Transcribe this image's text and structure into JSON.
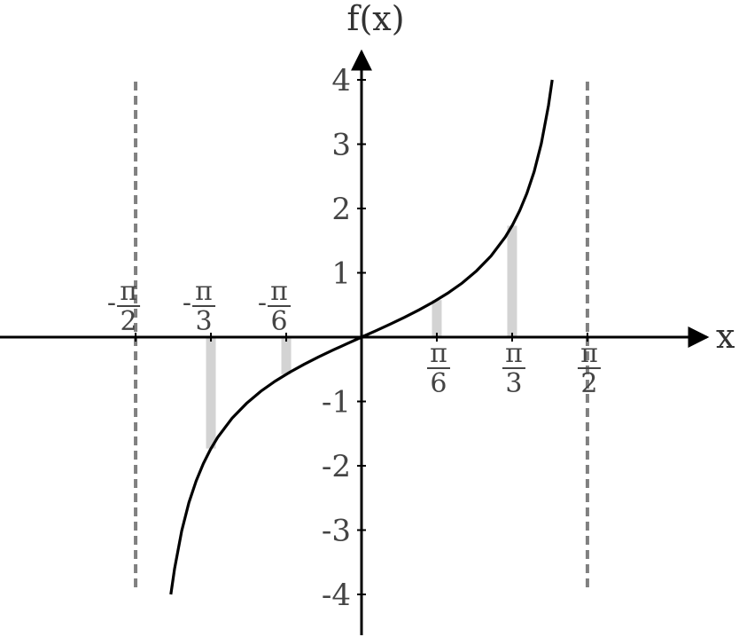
{
  "chart_data": {
    "type": "line",
    "function": "tan(x)",
    "xlabel": "x",
    "ylabel": "f(x)",
    "xlim": [
      -2.5,
      2.2
    ],
    "ylim": [
      -4.5,
      4.1
    ],
    "y_ticks": [
      {
        "value": -4,
        "label": "-4"
      },
      {
        "value": -3,
        "label": "-3"
      },
      {
        "value": -2,
        "label": "-2"
      },
      {
        "value": -1,
        "label": "-1"
      },
      {
        "value": 1,
        "label": "1"
      },
      {
        "value": 2,
        "label": "2"
      },
      {
        "value": 3,
        "label": "3"
      },
      {
        "value": 4,
        "label": "4"
      }
    ],
    "x_ticks": [
      {
        "value": -1.5708,
        "sign": "-",
        "numerator": "π",
        "denominator": "2",
        "position": "above"
      },
      {
        "value": -1.0472,
        "sign": "-",
        "numerator": "π",
        "denominator": "3",
        "position": "above"
      },
      {
        "value": -0.5236,
        "sign": "-",
        "numerator": "π",
        "denominator": "6",
        "position": "above"
      },
      {
        "value": 0.5236,
        "sign": "",
        "numerator": "π",
        "denominator": "6",
        "position": "below"
      },
      {
        "value": 1.0472,
        "sign": "",
        "numerator": "π",
        "denominator": "3",
        "position": "below"
      },
      {
        "value": 1.5708,
        "sign": "",
        "numerator": "π",
        "denominator": "2",
        "position": "below"
      }
    ],
    "asymptotes_x": [
      -1.5708,
      1.5708
    ],
    "highlight_points": [
      {
        "x": -1.0472,
        "y": -1.732
      },
      {
        "x": -0.5236,
        "y": -0.577
      },
      {
        "x": 0.5236,
        "y": 0.577
      },
      {
        "x": 1.0472,
        "y": 1.732
      }
    ],
    "curve_points": [
      {
        "x": -1.3258,
        "y": -4.0
      },
      {
        "x": -1.3,
        "y": -3.602
      },
      {
        "x": -1.25,
        "y": -3.01
      },
      {
        "x": -1.2,
        "y": -2.572
      },
      {
        "x": -1.15,
        "y": -2.234
      },
      {
        "x": -1.1,
        "y": -1.965
      },
      {
        "x": -1.05,
        "y": -1.743
      },
      {
        "x": -1.0,
        "y": -1.557
      },
      {
        "x": -0.9,
        "y": -1.26
      },
      {
        "x": -0.8,
        "y": -1.03
      },
      {
        "x": -0.7,
        "y": -0.842
      },
      {
        "x": -0.6,
        "y": -0.684
      },
      {
        "x": -0.5,
        "y": -0.546
      },
      {
        "x": -0.4,
        "y": -0.423
      },
      {
        "x": -0.3,
        "y": -0.309
      },
      {
        "x": -0.2,
        "y": -0.203
      },
      {
        "x": -0.1,
        "y": -0.1
      },
      {
        "x": 0.0,
        "y": 0.0
      },
      {
        "x": 0.1,
        "y": 0.1
      },
      {
        "x": 0.2,
        "y": 0.203
      },
      {
        "x": 0.3,
        "y": 0.309
      },
      {
        "x": 0.4,
        "y": 0.423
      },
      {
        "x": 0.5,
        "y": 0.546
      },
      {
        "x": 0.6,
        "y": 0.684
      },
      {
        "x": 0.7,
        "y": 0.842
      },
      {
        "x": 0.8,
        "y": 1.03
      },
      {
        "x": 0.9,
        "y": 1.26
      },
      {
        "x": 1.0,
        "y": 1.557
      },
      {
        "x": 1.05,
        "y": 1.743
      },
      {
        "x": 1.1,
        "y": 1.965
      },
      {
        "x": 1.15,
        "y": 2.234
      },
      {
        "x": 1.2,
        "y": 2.572
      },
      {
        "x": 1.25,
        "y": 3.01
      },
      {
        "x": 1.3,
        "y": 3.602
      },
      {
        "x": 1.3258,
        "y": 4.0
      }
    ],
    "grid": false,
    "colors": {
      "curve": "#000000",
      "asymptote": "#808080",
      "highlight": "#d3d3d3",
      "axes": "#000000"
    }
  }
}
